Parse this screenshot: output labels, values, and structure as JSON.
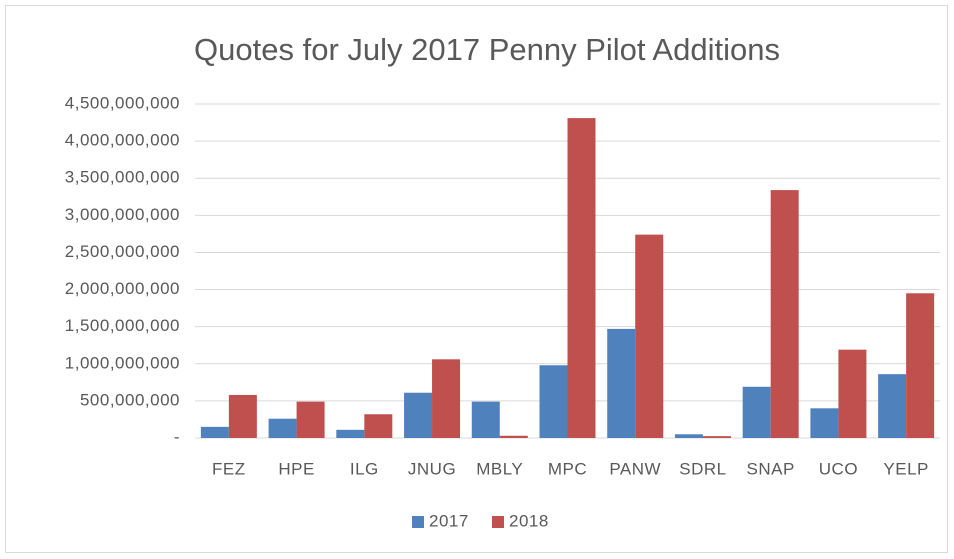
{
  "chart_data": {
    "type": "bar",
    "title": "Quotes for July 2017 Penny Pilot Additions",
    "categories": [
      "FEZ",
      "HPE",
      "ILG",
      "JNUG",
      "MBLY",
      "MPC",
      "PANW",
      "SDRL",
      "SNAP",
      "UCO",
      "YELP"
    ],
    "series": [
      {
        "name": "2017",
        "color": "#4f81bd",
        "values": [
          150000000,
          260000000,
          110000000,
          610000000,
          490000000,
          980000000,
          1470000000,
          50000000,
          690000000,
          400000000,
          860000000
        ]
      },
      {
        "name": "2018",
        "color": "#c0504d",
        "values": [
          580000000,
          490000000,
          320000000,
          1060000000,
          30000000,
          4310000000,
          2740000000,
          25000000,
          3340000000,
          1190000000,
          1950000000
        ]
      }
    ],
    "ylim": [
      0,
      4500000000
    ],
    "yticks": [
      {
        "value": 0,
        "label": "-"
      },
      {
        "value": 500000000,
        "label": "500,000,000"
      },
      {
        "value": 1000000000,
        "label": "1,000,000,000"
      },
      {
        "value": 1500000000,
        "label": "1,500,000,000"
      },
      {
        "value": 2000000000,
        "label": "2,000,000,000"
      },
      {
        "value": 2500000000,
        "label": "2,500,000,000"
      },
      {
        "value": 3000000000,
        "label": "3,000,000,000"
      },
      {
        "value": 3500000000,
        "label": "3,500,000,000"
      },
      {
        "value": 4000000000,
        "label": "4,000,000,000"
      },
      {
        "value": 4500000000,
        "label": "4,500,000,000"
      }
    ],
    "grid": true,
    "legend": "bottom"
  }
}
